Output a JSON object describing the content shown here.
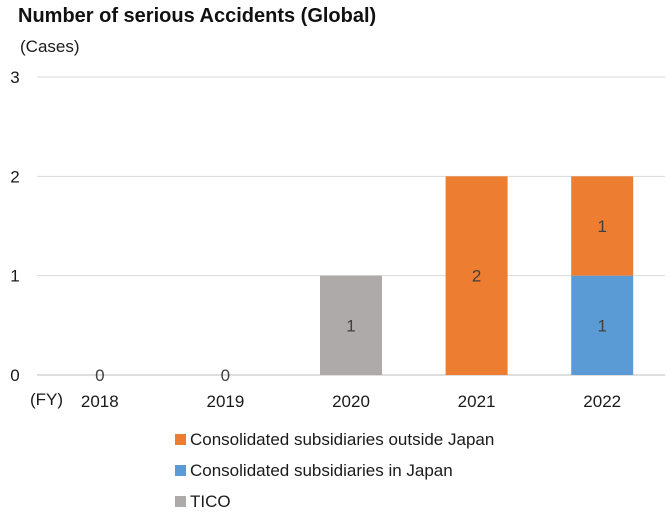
{
  "chart_data": {
    "type": "bar",
    "stacked": true,
    "title": "Number of serious Accidents (Global)",
    "ylabel": "(Cases)",
    "xlabel": "(FY)",
    "categories": [
      "2018",
      "2019",
      "2020",
      "2021",
      "2022"
    ],
    "ylim": [
      0,
      3
    ],
    "yticks": [
      0,
      1,
      2,
      3
    ],
    "grid": true,
    "legend_position": "bottom",
    "series": [
      {
        "name": "TICO",
        "color": "#aeaaaa",
        "values": [
          0,
          0,
          1,
          0,
          0
        ]
      },
      {
        "name": "Consolidated subsidiaries in Japan",
        "color": "#5b9bd5",
        "values": [
          0,
          0,
          0,
          0,
          1
        ]
      },
      {
        "name": "Consolidated subsidiaries outside Japan",
        "color": "#ed7d31",
        "values": [
          0,
          0,
          0,
          2,
          1
        ]
      }
    ],
    "zero_labels": [
      "0",
      "0"
    ],
    "legend_order": [
      "Consolidated subsidiaries outside Japan",
      "Consolidated subsidiaries in Japan",
      "TICO"
    ]
  }
}
